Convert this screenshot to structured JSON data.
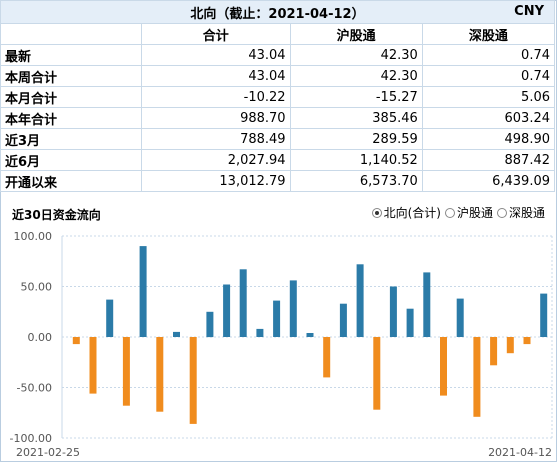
{
  "panel": {
    "title": "北向（截止：2021-04-12）",
    "currency": "CNY"
  },
  "table": {
    "columns": [
      "合计",
      "沪股通",
      "深股通"
    ],
    "rows": [
      {
        "label": "最新",
        "values": [
          "43.04",
          "42.30",
          "0.74"
        ]
      },
      {
        "label": "本周合计",
        "values": [
          "43.04",
          "42.30",
          "0.74"
        ]
      },
      {
        "label": "本月合计",
        "values": [
          "-10.22",
          "-15.27",
          "5.06"
        ]
      },
      {
        "label": "本年合计",
        "values": [
          "988.70",
          "385.46",
          "603.24"
        ]
      },
      {
        "label": "近3月",
        "values": [
          "788.49",
          "289.59",
          "498.90"
        ]
      },
      {
        "label": "近6月",
        "values": [
          "2,027.94",
          "1,140.52",
          "887.42"
        ]
      },
      {
        "label": "开通以来",
        "values": [
          "13,012.79",
          "6,573.70",
          "6,439.09"
        ]
      }
    ]
  },
  "chart_header": {
    "title": "近30日资金流向",
    "options": [
      {
        "label": "北向(合计)",
        "selected": true
      },
      {
        "label": "沪股通",
        "selected": false
      },
      {
        "label": "深股通",
        "selected": false
      }
    ]
  },
  "colors": {
    "positive": "#2b7ba8",
    "negative": "#f08c1e",
    "grid": "#c8d8e8"
  },
  "chart_data": {
    "type": "bar",
    "title": "",
    "xlabel": "",
    "ylabel": "",
    "ylim": [
      -100,
      100
    ],
    "yticks": [
      "100.00",
      "50.00",
      "0.00",
      "-50.00",
      "-100.00"
    ],
    "x_start_label": "2021-02-25",
    "x_end_label": "2021-04-12",
    "values": [
      -7,
      -56,
      37,
      -68,
      90,
      -74,
      5,
      -86,
      25,
      52,
      67,
      8,
      36,
      56,
      4,
      -40,
      33,
      72,
      -72,
      50,
      28,
      64,
      -58,
      38,
      -79,
      -28,
      -16,
      -7,
      43
    ]
  }
}
